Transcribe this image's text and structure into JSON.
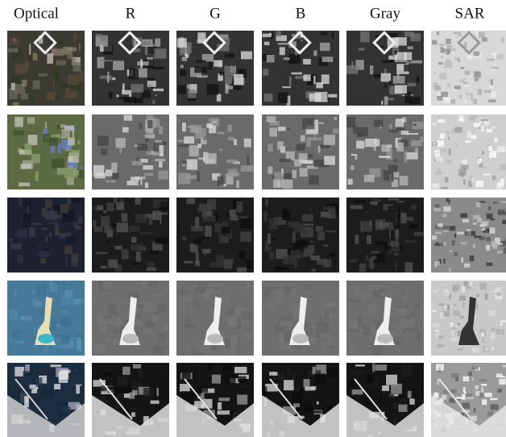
{
  "figure": {
    "headers": [
      "Optical",
      "R",
      "G",
      "B",
      "Gray",
      "SAR"
    ]
  }
}
